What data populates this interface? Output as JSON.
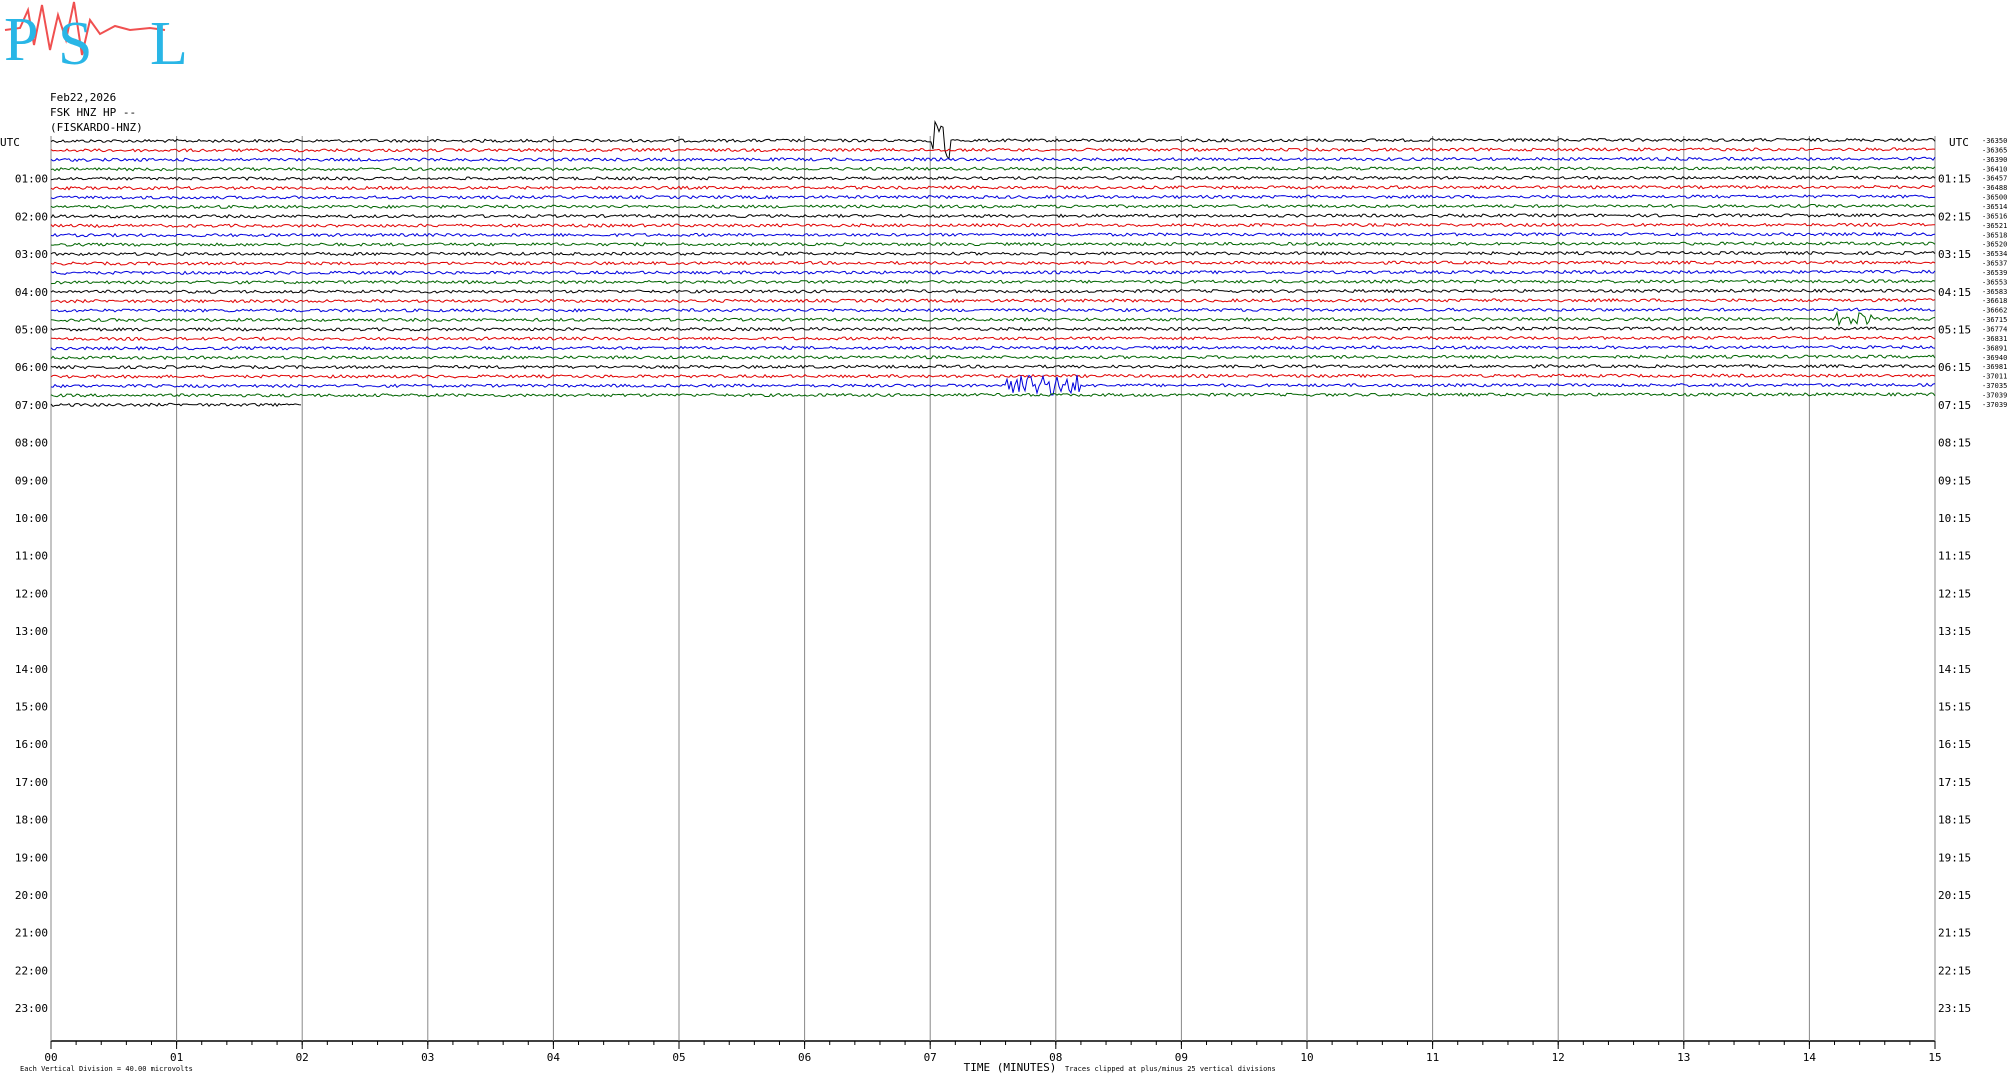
{
  "logo": {
    "letters": [
      "P",
      "S",
      "L"
    ]
  },
  "header": {
    "date": "Feb22,2026",
    "channel": "FSK HNZ HP --",
    "station": "(FISKARDO-HNZ)"
  },
  "left_axis": {
    "unit": "UTC",
    "labels": [
      "01:00",
      "02:00",
      "03:00",
      "04:00",
      "05:00",
      "06:00",
      "07:00",
      "08:00",
      "09:00",
      "10:00",
      "11:00",
      "12:00",
      "13:00",
      "14:00",
      "15:00",
      "16:00",
      "17:00",
      "18:00",
      "19:00",
      "20:00",
      "21:00",
      "22:00",
      "23:00"
    ]
  },
  "right_axis": {
    "unit": "UTC",
    "labels": [
      "01:15",
      "02:15",
      "03:15",
      "04:15",
      "05:15",
      "06:15",
      "07:15",
      "08:15",
      "09:15",
      "10:15",
      "11:15",
      "12:15",
      "13:15",
      "14:15",
      "15:15",
      "16:15",
      "17:15",
      "18:15",
      "19:15",
      "20:15",
      "21:15",
      "22:15",
      "23:15"
    ]
  },
  "trace_colors": [
    "#000000",
    "#e00000",
    "#0000dd",
    "#006400"
  ],
  "offsets": [
    -36350,
    -36365,
    -36390,
    -36410,
    -36457,
    -36488,
    -36500,
    -36514,
    -36516,
    -36521,
    -36518,
    -36520,
    -36534,
    -36537,
    -36539,
    -36553,
    -36583,
    -36618,
    -36662,
    -36715,
    -36774,
    -36831,
    -36891,
    -36940,
    -36981,
    -37011,
    -37035,
    -37039,
    -37039
  ],
  "minutes": [
    "00",
    "01",
    "02",
    "03",
    "04",
    "05",
    "06",
    "07",
    "08",
    "09",
    "10",
    "11",
    "12",
    "13",
    "14",
    "15"
  ],
  "footer": {
    "x_label": "TIME (MINUTES)",
    "scale": "Each Vertical Division =   40.00 microvolts",
    "clip": "Traces clipped at plus/minus 25 vertical divisions"
  }
}
